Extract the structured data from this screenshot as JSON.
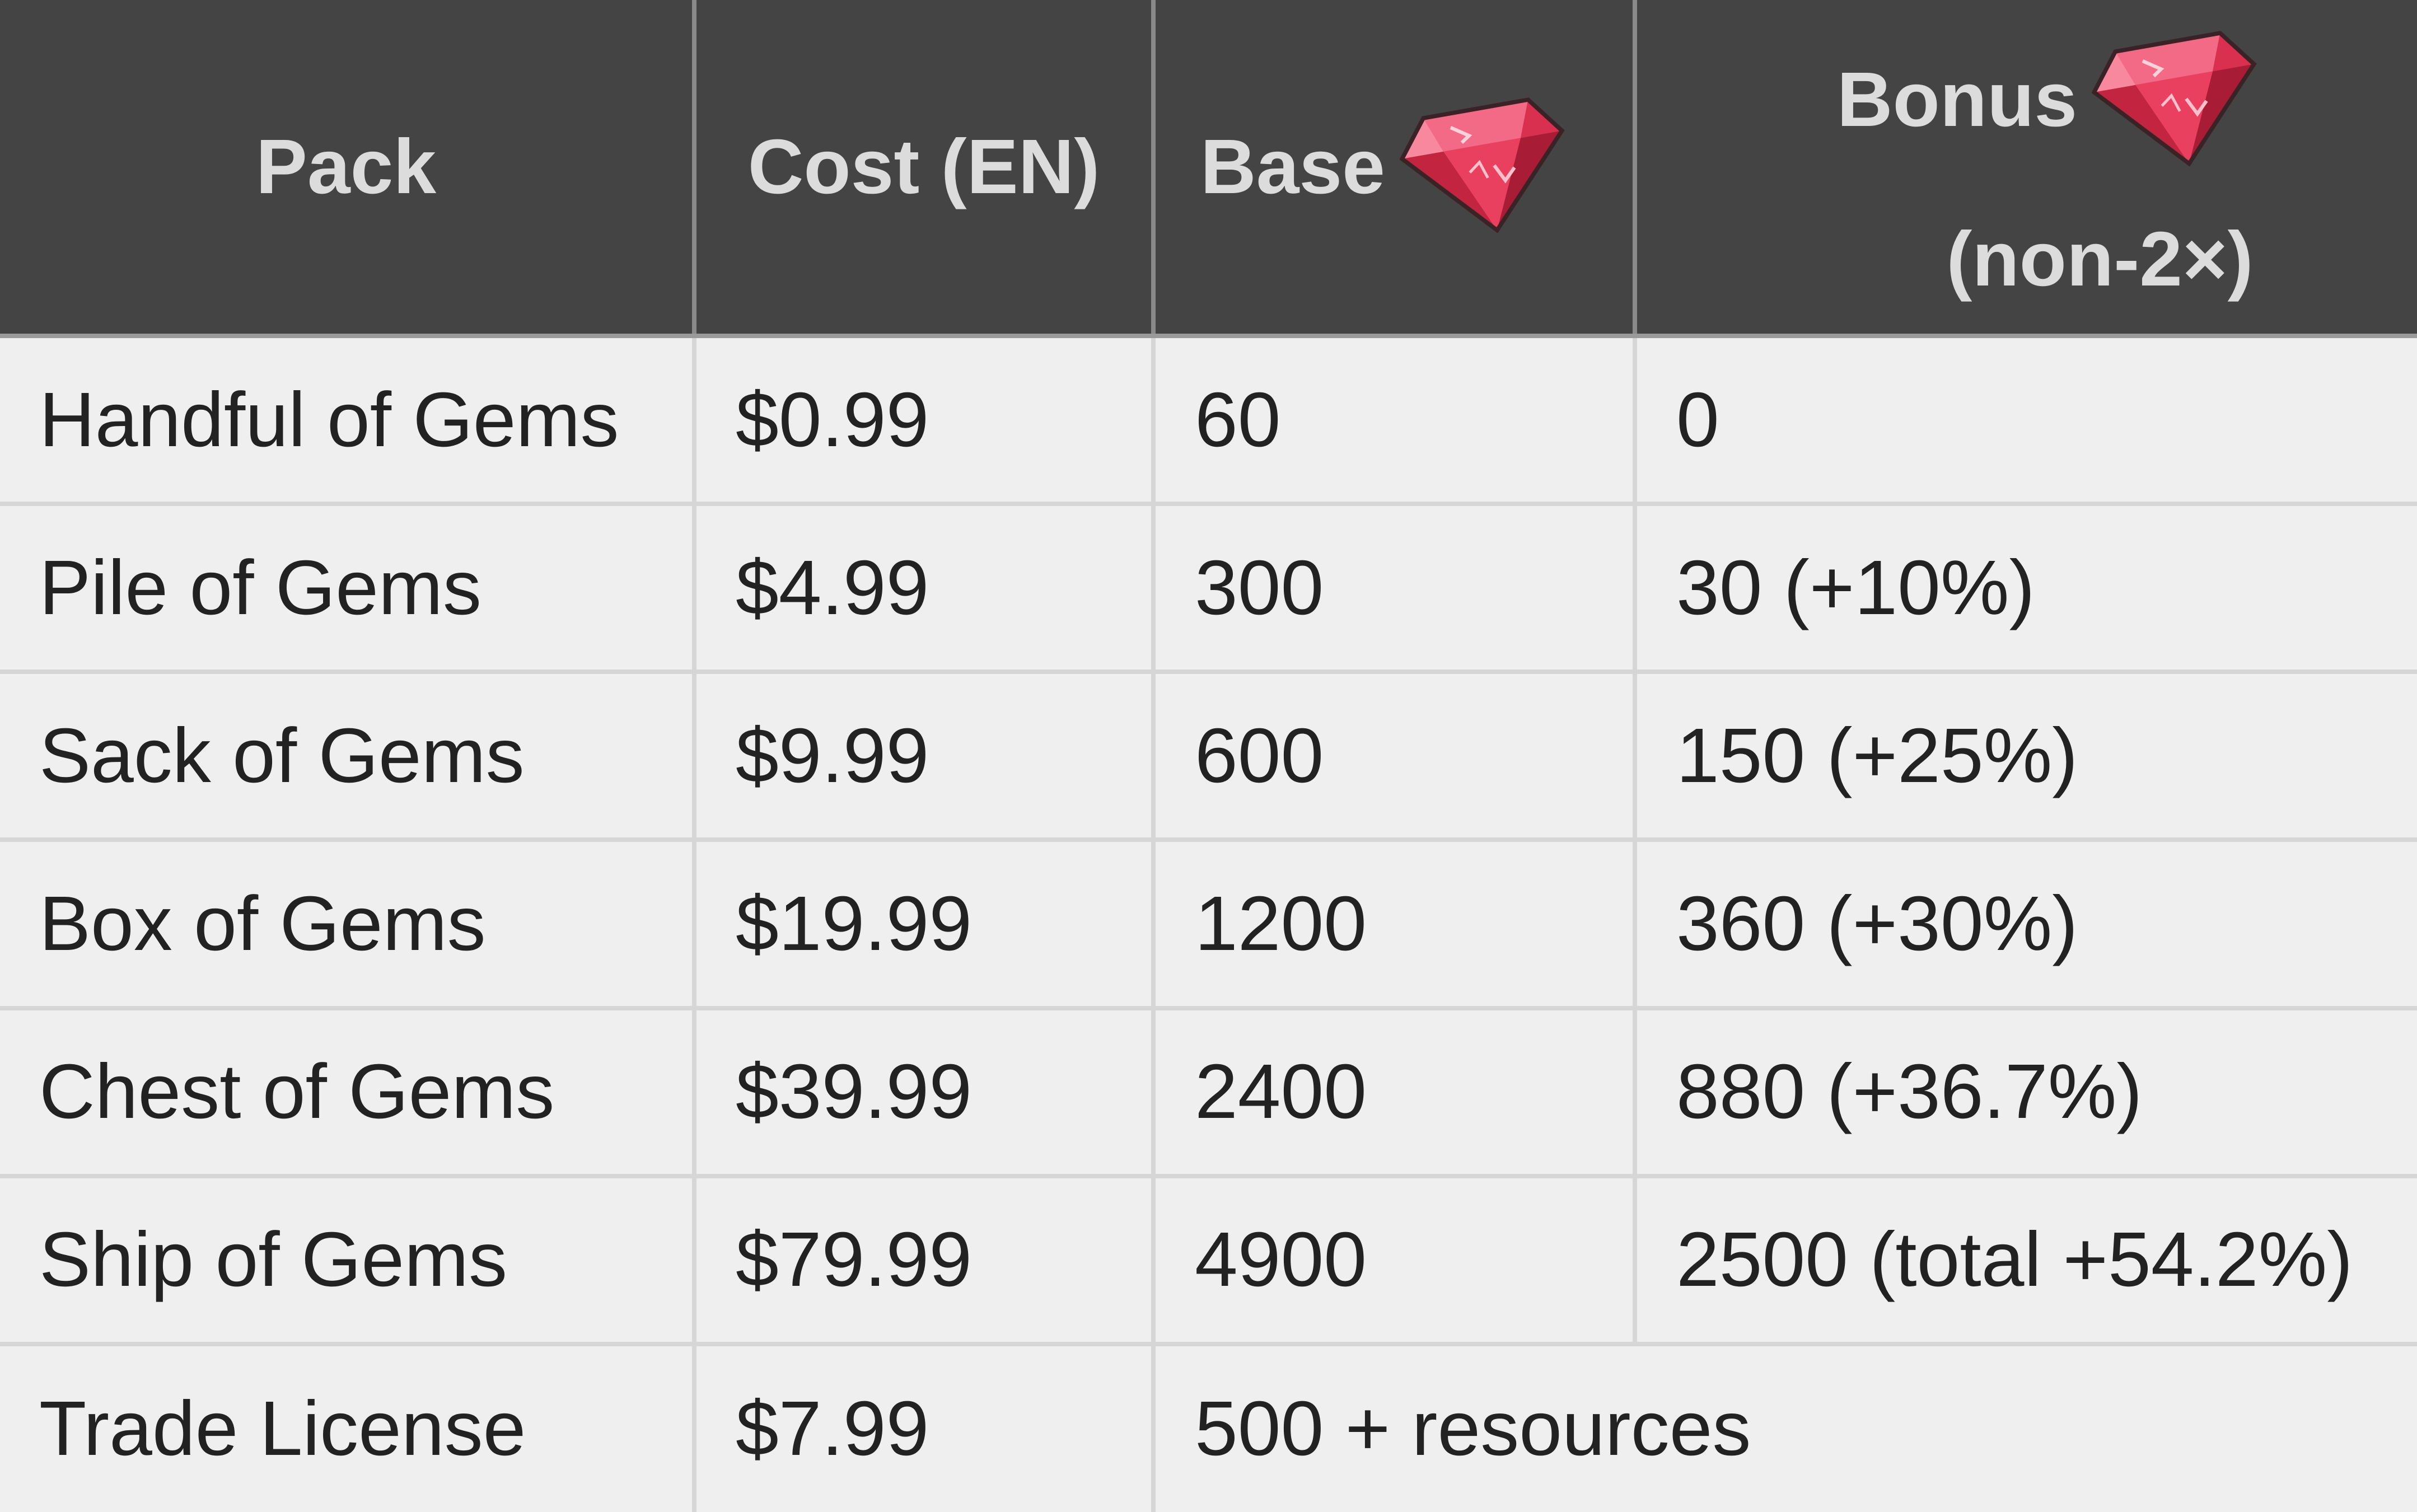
{
  "table": {
    "headers": {
      "pack": "Pack",
      "cost": "Cost (EN)",
      "base": "Base",
      "bonus_line1": "Bonus",
      "bonus_line2": "(non-2×)"
    },
    "header_icons": [
      "gem-icon",
      "gem-icon"
    ],
    "rows": [
      {
        "pack": "Handful of Gems",
        "cost": "$0.99",
        "base": "60",
        "bonus": "0"
      },
      {
        "pack": "Pile of Gems",
        "cost": "$4.99",
        "base": "300",
        "bonus": "30 (+10%)"
      },
      {
        "pack": "Sack of Gems",
        "cost": "$9.99",
        "base": "600",
        "bonus": "150 (+25%)"
      },
      {
        "pack": "Box of Gems",
        "cost": "$19.99",
        "base": "1200",
        "bonus": "360 (+30%)"
      },
      {
        "pack": "Chest of Gems",
        "cost": "$39.99",
        "base": "2400",
        "bonus": "880 (+36.7%)"
      },
      {
        "pack": "Ship of Gems",
        "cost": "$79.99",
        "base": "4900",
        "bonus": "2500 (total +54.2%)"
      },
      {
        "pack": "Trade License",
        "cost": "$7.99",
        "base_and_bonus": "500 + resources"
      }
    ]
  },
  "colors": {
    "header_bg": "#444444",
    "header_text": "#dcdcdc",
    "row_bg": "#efefef",
    "grid": "#d6d6d6",
    "gem": "#e8405e"
  }
}
